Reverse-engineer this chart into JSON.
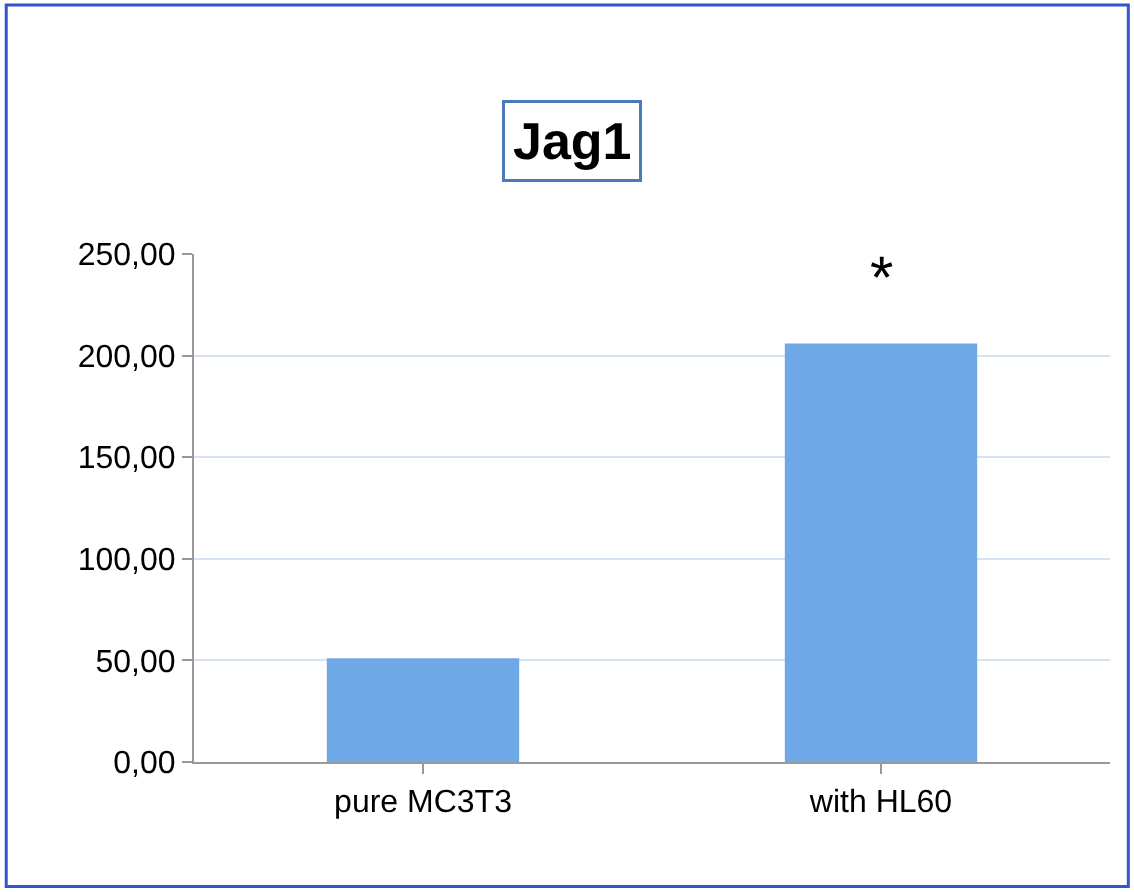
{
  "chart_data": {
    "type": "bar",
    "title": "Jag1",
    "categories": [
      "pure MC3T3",
      "with HL60"
    ],
    "values": [
      51,
      206
    ],
    "color": "#6fa8e6",
    "ylim": [
      0,
      250
    ],
    "yticks": [
      {
        "value": 0,
        "label": "0,00"
      },
      {
        "value": 50,
        "label": "50,00"
      },
      {
        "value": 100,
        "label": "100,00"
      },
      {
        "value": 150,
        "label": "150,00"
      },
      {
        "value": 200,
        "label": "200,00"
      },
      {
        "value": 250,
        "label": "250,00"
      }
    ],
    "grid": "y",
    "annotations": [
      "*"
    ]
  }
}
